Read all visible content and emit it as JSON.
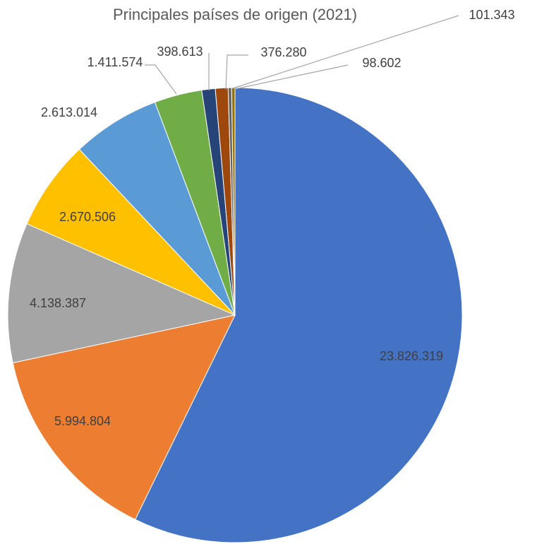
{
  "chart_data": {
    "type": "pie",
    "title": "Principales países de origen (2021)",
    "values": [
      23826319,
      5994804,
      4138387,
      2670506,
      2613014,
      1411574,
      398613,
      376280,
      101343,
      98602
    ],
    "value_labels": [
      "23.826.319",
      "5.994.804",
      "4.138.387",
      "2.670.506",
      "2.613.014",
      "1.411.574",
      "398.613",
      "376.280",
      "101.343",
      "98.602"
    ],
    "colors": [
      "#4472c4",
      "#ed7d31",
      "#a5a5a5",
      "#ffc000",
      "#5b9bd5",
      "#70ad47",
      "#264478",
      "#9e480e",
      "#636363",
      "#997300"
    ]
  }
}
